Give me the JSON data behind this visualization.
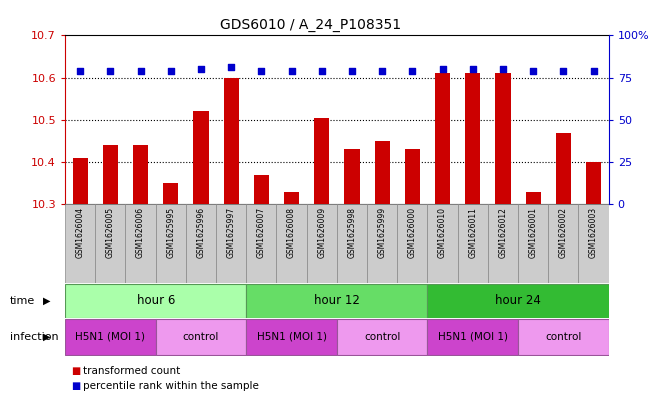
{
  "title": "GDS6010 / A_24_P108351",
  "samples": [
    "GSM1626004",
    "GSM1626005",
    "GSM1626006",
    "GSM1625995",
    "GSM1625996",
    "GSM1625997",
    "GSM1626007",
    "GSM1626008",
    "GSM1626009",
    "GSM1625998",
    "GSM1625999",
    "GSM1626000",
    "GSM1626010",
    "GSM1626011",
    "GSM1626012",
    "GSM1626001",
    "GSM1626002",
    "GSM1626003"
  ],
  "bar_values": [
    10.41,
    10.44,
    10.44,
    10.35,
    10.52,
    10.6,
    10.37,
    10.33,
    10.505,
    10.43,
    10.45,
    10.43,
    10.61,
    10.61,
    10.61,
    10.33,
    10.47,
    10.4
  ],
  "percentile_values": [
    79,
    79,
    79,
    79,
    80,
    81,
    79,
    79,
    79,
    79,
    79,
    79,
    80,
    80,
    80,
    79,
    79,
    79
  ],
  "bar_color": "#cc0000",
  "percentile_color": "#0000cc",
  "ylim_left": [
    10.3,
    10.7
  ],
  "ylim_right": [
    0,
    100
  ],
  "yticks_left": [
    10.3,
    10.4,
    10.5,
    10.6,
    10.7
  ],
  "ytick_labels_left": [
    "10.3",
    "10.4",
    "10.5",
    "10.6",
    "10.7"
  ],
  "yticks_right": [
    0,
    25,
    50,
    75,
    100
  ],
  "ytick_labels_right": [
    "0",
    "25",
    "50",
    "75",
    "100%"
  ],
  "grid_values": [
    10.4,
    10.5,
    10.6
  ],
  "time_groups": [
    {
      "label": "hour 6",
      "start": 0,
      "end": 6,
      "color": "#aaffaa"
    },
    {
      "label": "hour 12",
      "start": 6,
      "end": 12,
      "color": "#66dd66"
    },
    {
      "label": "hour 24",
      "start": 12,
      "end": 18,
      "color": "#33bb33"
    }
  ],
  "infection_groups": [
    {
      "label": "H5N1 (MOI 1)",
      "start": 0,
      "end": 3,
      "color": "#cc44cc"
    },
    {
      "label": "control",
      "start": 3,
      "end": 6,
      "color": "#ee99ee"
    },
    {
      "label": "H5N1 (MOI 1)",
      "start": 6,
      "end": 9,
      "color": "#cc44cc"
    },
    {
      "label": "control",
      "start": 9,
      "end": 12,
      "color": "#ee99ee"
    },
    {
      "label": "H5N1 (MOI 1)",
      "start": 12,
      "end": 15,
      "color": "#cc44cc"
    },
    {
      "label": "control",
      "start": 15,
      "end": 18,
      "color": "#ee99ee"
    }
  ],
  "legend_bar_label": "transformed count",
  "legend_dot_label": "percentile rank within the sample",
  "xaxis_bg": "#cccccc",
  "time_row_label": "time",
  "infection_row_label": "infection",
  "bar_width": 0.5
}
